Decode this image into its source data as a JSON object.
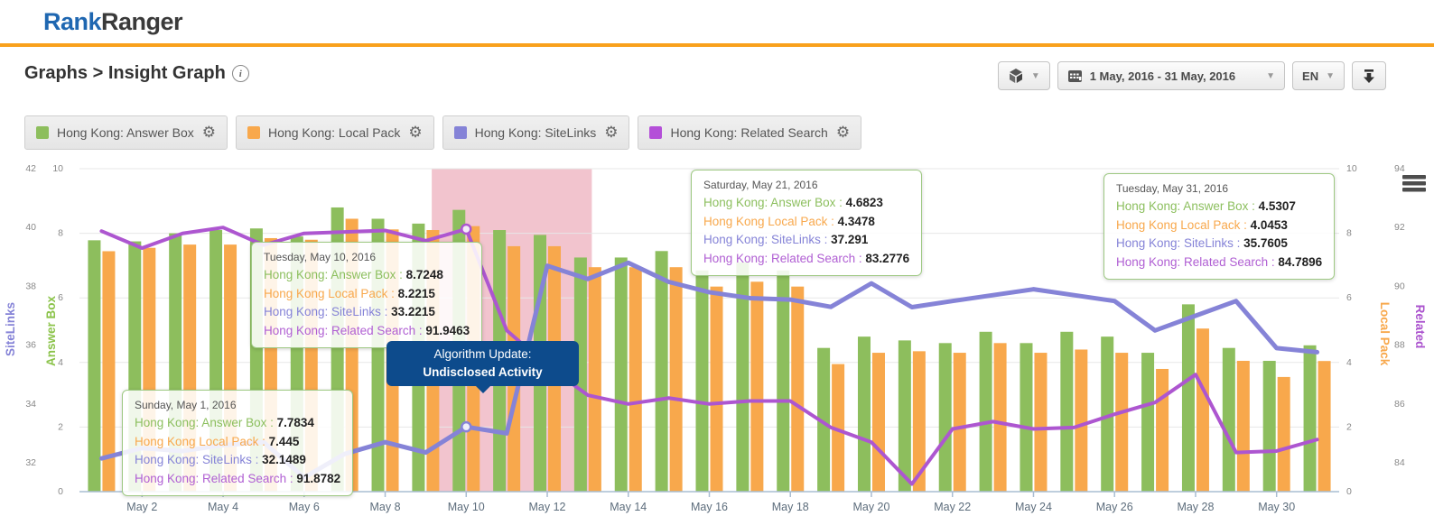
{
  "header": {
    "logo_part1": "Rank",
    "logo_part2": "Ranger"
  },
  "page": {
    "breadcrumb": "Graphs > Insight Graph"
  },
  "toolbar": {
    "date_range": "1 May, 2016 - 31 May, 2016",
    "language": "EN"
  },
  "legend": [
    {
      "label": "Hong Kong: Answer Box",
      "color": "#8dbe5d"
    },
    {
      "label": "Hong Kong: Local Pack",
      "color": "#f8a84c"
    },
    {
      "label": "Hong Kong: SiteLinks",
      "color": "#8583d7"
    },
    {
      "label": "Hong Kong: Related Search",
      "color": "#b44fd8"
    }
  ],
  "annotation": {
    "line1": "Algorithm Update:",
    "line2": "Undisclosed Activity",
    "bg": "#0d4b8c"
  },
  "tooltips": [
    {
      "title": "Sunday, May 1, 2016",
      "rows": [
        {
          "label": "Hong Kong: Answer Box",
          "value": "7.7834",
          "color": "#8cbf5e"
        },
        {
          "label": "Hong Kong Local Pack",
          "value": "7.445",
          "color": "#f8a84c"
        },
        {
          "label": "Hong Kong: SiteLinks",
          "value": "32.1489",
          "color": "#8583d7"
        },
        {
          "label": "Hong Kong: Related Search",
          "value": "91.8782",
          "color": "#b05fd3"
        }
      ]
    },
    {
      "title": "Tuesday, May 10, 2016",
      "rows": [
        {
          "label": "Hong Kong: Answer Box",
          "value": "8.7248",
          "color": "#8cbf5e"
        },
        {
          "label": "Hong Kong Local Pack",
          "value": "8.2215",
          "color": "#f8a84c"
        },
        {
          "label": "Hong Kong: SiteLinks",
          "value": "33.2215",
          "color": "#8583d7"
        },
        {
          "label": "Hong Kong: Related Search",
          "value": "91.9463",
          "color": "#b05fd3"
        }
      ]
    },
    {
      "title": "Saturday, May 21, 2016",
      "rows": [
        {
          "label": "Hong Kong: Answer Box",
          "value": "4.6823",
          "color": "#8cbf5e"
        },
        {
          "label": "Hong Kong Local Pack",
          "value": "4.3478",
          "color": "#f8a84c"
        },
        {
          "label": "Hong Kong: SiteLinks",
          "value": "37.291",
          "color": "#8583d7"
        },
        {
          "label": "Hong Kong: Related Search",
          "value": "83.2776",
          "color": "#b05fd3"
        }
      ]
    },
    {
      "title": "Tuesday, May 31, 2016",
      "rows": [
        {
          "label": "Hong Kong: Answer Box",
          "value": "4.5307",
          "color": "#8cbf5e"
        },
        {
          "label": "Hong Kong Local Pack",
          "value": "4.0453",
          "color": "#f8a84c"
        },
        {
          "label": "Hong Kong: SiteLinks",
          "value": "35.7605",
          "color": "#8583d7"
        },
        {
          "label": "Hong Kong: Related Search",
          "value": "84.7896",
          "color": "#b05fd3"
        }
      ]
    }
  ],
  "chart_data": {
    "type": "bar+line combo",
    "x_tick_labels": [
      "May 2",
      "May 4",
      "May 6",
      "May 8",
      "May 10",
      "May 12",
      "May 14",
      "May 16",
      "May 18",
      "May 20",
      "May 22",
      "May 24",
      "May 26",
      "May 28",
      "May 30"
    ],
    "x_tick_days": [
      2,
      4,
      6,
      8,
      10,
      12,
      14,
      16,
      18,
      20,
      22,
      24,
      26,
      28,
      30
    ],
    "num_days": 31,
    "axes": {
      "sitelinks": {
        "title": "SiteLinks",
        "side": "outer-left",
        "ticks": [
          42,
          40,
          38,
          36,
          34,
          32
        ],
        "color": "#8583d7"
      },
      "answer_box": {
        "title": "Answer Box",
        "side": "inner-left",
        "ticks": [
          10,
          8,
          6,
          4,
          2,
          0
        ],
        "color": "#8bc34a"
      },
      "local_pack": {
        "title": "Local Pack",
        "side": "inner-right",
        "ticks": [
          10,
          8,
          6,
          4,
          2,
          0
        ],
        "color": "#f8a84c"
      },
      "related": {
        "title": "Related",
        "side": "outer-right",
        "ticks": [
          94,
          92,
          90,
          88,
          86,
          84
        ],
        "color": "#ab53ce"
      }
    },
    "highlight_region": {
      "start_day": 9.15,
      "end_day": 13.1,
      "color": "#f2c4ce",
      "meaning": "algorithm update window"
    },
    "marker_day": 10,
    "series": [
      {
        "name": "Hong Kong: Answer Box",
        "type": "bar",
        "axis": "answer_box",
        "color": "#8dbe5d",
        "values": [
          7.7834,
          7.75,
          8.0,
          8.1,
          8.15,
          7.9,
          8.8,
          8.45,
          8.3,
          8.7248,
          8.1,
          7.95,
          7.25,
          7.25,
          7.45,
          6.85,
          7.1,
          6.85,
          4.45,
          4.8,
          4.6823,
          4.6,
          4.95,
          4.6,
          4.95,
          4.8,
          4.3,
          5.8,
          4.45,
          4.05,
          4.5307
        ]
      },
      {
        "name": "Hong Kong: Local Pack",
        "type": "bar",
        "axis": "local_pack",
        "color": "#f8a84c",
        "values": [
          7.445,
          7.55,
          7.65,
          7.65,
          7.85,
          7.8,
          8.45,
          8.12,
          8.1,
          8.2215,
          7.6,
          7.6,
          6.95,
          6.95,
          6.95,
          6.35,
          6.5,
          6.35,
          3.95,
          4.3,
          4.3478,
          4.3,
          4.6,
          4.3,
          4.4,
          4.3,
          3.8,
          5.05,
          4.05,
          3.55,
          4.0453
        ]
      },
      {
        "name": "Hong Kong: SiteLinks",
        "type": "line",
        "axis": "sitelinks",
        "color": "#8583d7",
        "values": [
          32.1489,
          32.5,
          32.4,
          32.6,
          32.7,
          31.5,
          32.3,
          32.7,
          32.35,
          33.2215,
          33.0,
          38.7,
          38.25,
          38.8,
          38.15,
          37.8,
          37.6,
          37.55,
          37.3,
          38.1,
          37.291,
          37.5,
          37.7,
          37.9,
          37.7,
          37.5,
          36.5,
          37.0,
          37.5,
          35.9,
          35.7605
        ]
      },
      {
        "name": "Hong Kong: Related Search",
        "type": "line",
        "axis": "related",
        "color": "#ad56d0",
        "values": [
          91.8782,
          91.3,
          91.8,
          92.0,
          91.4,
          91.8,
          91.85,
          91.9,
          91.55,
          91.9463,
          88.5,
          87.3,
          86.3,
          86.0,
          86.2,
          86.0,
          86.1,
          86.1,
          85.2,
          84.7,
          83.2776,
          85.15,
          85.4,
          85.15,
          85.2,
          85.65,
          86.05,
          87.0,
          84.35,
          84.4,
          84.7896
        ]
      }
    ]
  }
}
